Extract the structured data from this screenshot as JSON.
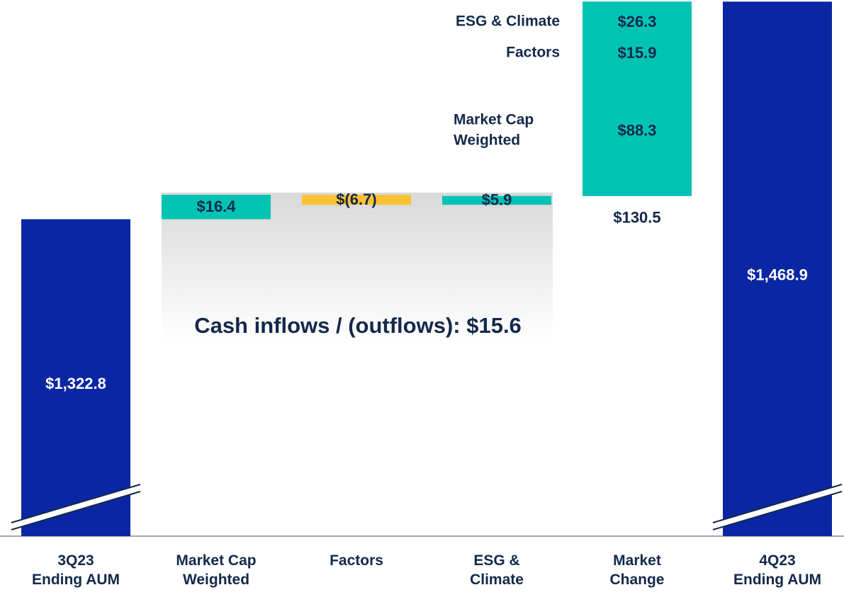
{
  "chart_data": {
    "type": "waterfall",
    "categories": [
      "3Q23 Ending AUM",
      "Market Cap Weighted",
      "Factors",
      "ESG & Climate",
      "Market Change",
      "4Q23 Ending AUM"
    ],
    "values": [
      1322.8,
      16.4,
      -6.7,
      5.9,
      130.5,
      1468.9
    ],
    "value_labels": [
      "$1,322.8",
      "$16.4",
      "$(6.7)",
      "$5.9",
      "$130.5",
      "$1,468.9"
    ],
    "kinds": [
      "total",
      "change",
      "change",
      "change",
      "change",
      "total"
    ],
    "colors": {
      "total": "#0a26a3",
      "increase": "#00c3b3",
      "decrease": "#fdc234"
    },
    "breakdown": {
      "category": "Market Change",
      "names": [
        "Market Cap Weighted",
        "Factors",
        "ESG & Climate"
      ],
      "values": [
        88.3,
        15.9,
        26.3
      ],
      "value_labels": [
        "$88.3",
        "$15.9",
        "$26.3"
      ]
    },
    "annotation": "Cash inflows / (outflows): $15.6",
    "ylim": [
      1110,
      1470
    ],
    "axis_break": true
  }
}
